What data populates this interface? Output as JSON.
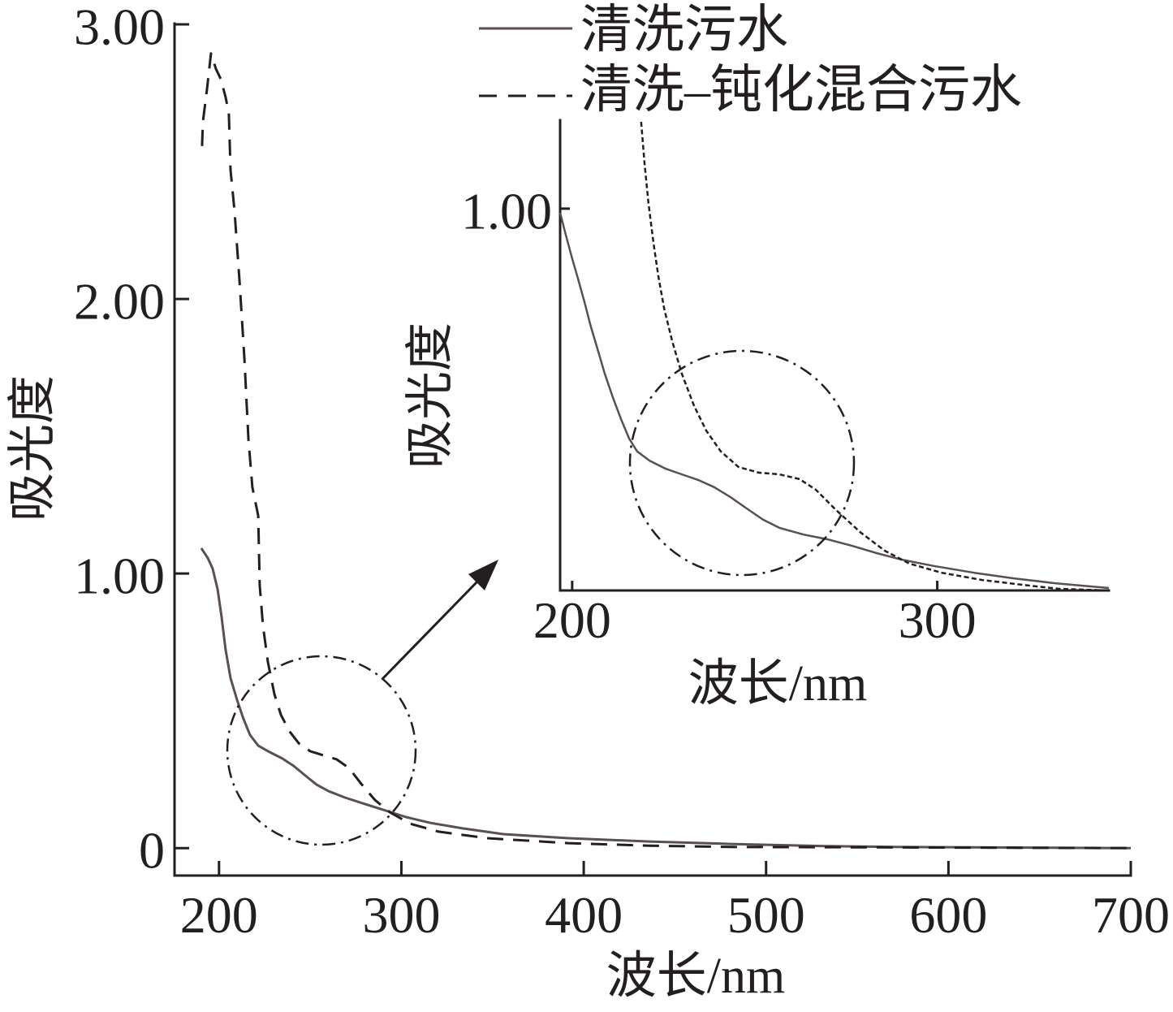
{
  "chart_data": [
    {
      "type": "line",
      "xlabel": "波长/nm",
      "ylabel": "吸光度",
      "xlim": [
        175.6,
        700
      ],
      "ylim": [
        -0.1,
        3.0
      ],
      "xticks": [
        200,
        300,
        400,
        500,
        600,
        700
      ],
      "xtick_labels": [
        "200",
        "300",
        "400",
        "500",
        "600",
        "700"
      ],
      "yticks": [
        0,
        1,
        2,
        3
      ],
      "ytick_labels": [
        "0",
        "1.00",
        "2.00",
        "3.00"
      ],
      "grid": false,
      "legend_position": "top-center",
      "series": [
        {
          "name": "清洗污水",
          "line_style": "solid",
          "color": "#5a5050",
          "x": [
            190.3,
            193.9,
            196.5,
            199.2,
            201.4,
            203.6,
            206.3,
            209.9,
            213.4,
            217.0,
            221.5,
            227.7,
            234.8,
            241.0,
            247.3,
            253.5,
            260.2,
            269.1,
            280.2,
            291.3,
            302.5,
            315.8,
            333.6,
            355.9,
            391.5,
            436.0,
            480.5,
            533.9,
            569.6,
            700
          ],
          "y": [
            1.092,
            1.056,
            1.018,
            0.944,
            0.841,
            0.723,
            0.619,
            0.539,
            0.471,
            0.412,
            0.373,
            0.35,
            0.326,
            0.299,
            0.264,
            0.231,
            0.207,
            0.184,
            0.16,
            0.137,
            0.113,
            0.092,
            0.072,
            0.051,
            0.036,
            0.024,
            0.015,
            0.007,
            0.004,
            0.0
          ]
        },
        {
          "name": "清洗–钝化混合污水",
          "line_style": "dashed",
          "color": "#231f20",
          "x": [
            190.7,
            191.2,
            193.4,
            195.6,
            198.3,
            201.0,
            203.6,
            205.4,
            206.3,
            208.5,
            211.2,
            213.9,
            216.1,
            218.3,
            221.5,
            222.3,
            224.1,
            226.8,
            230.4,
            233.9,
            238.4,
            243.7,
            250.0,
            257.1,
            264.6,
            271.3,
            278.0,
            285.5,
            293.6,
            304.7,
            320.3,
            347.0,
            391.5,
            436.0,
            480.5,
            700
          ],
          "y": [
            2.557,
            2.646,
            2.764,
            2.894,
            2.838,
            2.8,
            2.735,
            2.676,
            2.469,
            2.321,
            2.068,
            1.787,
            1.491,
            1.314,
            1.21,
            0.959,
            0.811,
            0.678,
            0.56,
            0.486,
            0.427,
            0.382,
            0.353,
            0.338,
            0.323,
            0.291,
            0.234,
            0.175,
            0.131,
            0.089,
            0.06,
            0.036,
            0.018,
            0.009,
            0.004,
            0.0
          ]
        }
      ]
    },
    {
      "type": "line",
      "xlabel": "波长/nm",
      "ylabel": "吸光度",
      "xlim": [
        196.7,
        347.0
      ],
      "ylim": [
        0.05,
        1.22
      ],
      "xticks": [
        200,
        300
      ],
      "xtick_labels": [
        "200",
        "300"
      ],
      "yticks": [
        1
      ],
      "ytick_labels": [
        "1.00"
      ],
      "grid": false,
      "series": [
        {
          "line_style": "solid",
          "color": "#5a5050",
          "x": [
            196.7,
            198.3,
            200.0,
            201.6,
            203.4,
            205.1,
            207.1,
            208.9,
            211.2,
            213.4,
            215.6,
            217.8,
            221.2,
            225.6,
            230.0,
            234.5,
            238.9,
            243.4,
            247.8,
            252.3,
            256.7,
            263.4,
            270.1,
            276.7,
            283.4,
            290.1,
            299.0,
            310.1,
            321.2,
            332.3,
            347.0
          ],
          "y": [
            0.99,
            0.933,
            0.876,
            0.826,
            0.767,
            0.707,
            0.646,
            0.59,
            0.529,
            0.476,
            0.428,
            0.396,
            0.373,
            0.353,
            0.339,
            0.325,
            0.307,
            0.282,
            0.254,
            0.226,
            0.206,
            0.189,
            0.177,
            0.161,
            0.143,
            0.127,
            0.111,
            0.094,
            0.08,
            0.068,
            0.056
          ]
        },
        {
          "line_style": "dashed",
          "color": "#231f20",
          "x": [
            218.9,
            219.8,
            220.9,
            222.3,
            223.6,
            225.2,
            227.4,
            230.0,
            233.4,
            236.7,
            240.7,
            245.6,
            251.2,
            256.7,
            262.3,
            266.7,
            272.3,
            278.9,
            285.6,
            292.3,
            301.2,
            312.3,
            323.4,
            333.4,
            347.0
          ],
          "y": [
            1.216,
            1.115,
            1.014,
            0.913,
            0.832,
            0.751,
            0.67,
            0.59,
            0.509,
            0.448,
            0.396,
            0.357,
            0.343,
            0.339,
            0.327,
            0.301,
            0.25,
            0.195,
            0.149,
            0.117,
            0.094,
            0.076,
            0.064,
            0.054,
            0.05
          ]
        }
      ]
    }
  ]
}
